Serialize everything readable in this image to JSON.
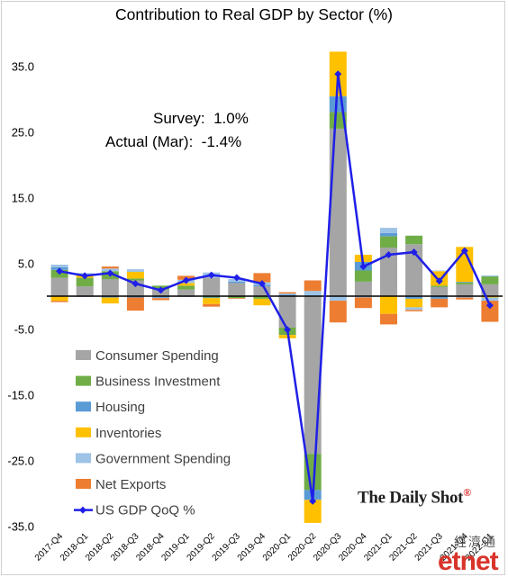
{
  "chart_data": {
    "type": "bar",
    "title": "Contribution to Real GDP by Sector (%)",
    "stacked": true,
    "categories": [
      "2017-Q4",
      "2018-Q1",
      "2018-Q2",
      "2018-Q3",
      "2018-Q4",
      "2019-Q1",
      "2019-Q2",
      "2019-Q3",
      "2019-Q4",
      "2020-Q1",
      "2020-Q2",
      "2020-Q3",
      "2020-Q4",
      "2021-Q1",
      "2021-Q2",
      "2021-Q3",
      "2021-Q4",
      "2022-Q1"
    ],
    "ylim": [
      -35,
      40
    ],
    "yticks": [
      "35.0",
      "25.0",
      "15.0",
      "5.0",
      "-5.0",
      "-15.0",
      "-25.0",
      "-35.0"
    ],
    "ytick_values": [
      35,
      25,
      15,
      5,
      -5,
      -15,
      -25,
      -35
    ],
    "series": [
      {
        "name": "Consumer Spending",
        "color": "#a5a5a5",
        "values": [
          2.8,
          1.5,
          2.6,
          2.4,
          1.0,
          1.0,
          2.8,
          2.0,
          1.5,
          -4.8,
          -24.0,
          25.5,
          2.2,
          7.4,
          7.9,
          1.4,
          1.8,
          1.8
        ]
      },
      {
        "name": "Business Investment",
        "color": "#70ad47",
        "values": [
          1.2,
          1.3,
          1.2,
          0.3,
          0.6,
          0.6,
          -0.2,
          -0.3,
          -0.4,
          -1.1,
          -5.5,
          2.5,
          1.7,
          1.7,
          1.3,
          0.2,
          0.3,
          1.2
        ]
      },
      {
        "name": "Housing",
        "color": "#5b9bd5",
        "values": [
          0.4,
          -0.1,
          -0.2,
          -0.2,
          -0.2,
          -0.1,
          -0.1,
          0.2,
          0.2,
          0.2,
          -1.5,
          2.4,
          1.3,
          0.5,
          -0.4,
          -0.4,
          0.1,
          0.1
        ]
      },
      {
        "name": "Inventories",
        "color": "#ffc000",
        "values": [
          -0.7,
          0.4,
          -0.9,
          1.0,
          0.0,
          0.4,
          -0.9,
          0.0,
          -1.0,
          -0.5,
          -3.5,
          6.8,
          1.1,
          -2.7,
          -1.3,
          2.2,
          5.3,
          -0.2
        ]
      },
      {
        "name": "Government Spending",
        "color": "#9dc3e6",
        "values": [
          0.4,
          0.3,
          0.4,
          0.4,
          -0.1,
          0.5,
          0.8,
          0.4,
          0.4,
          0.2,
          0.8,
          -0.7,
          -0.2,
          0.8,
          -0.4,
          0.1,
          -0.2,
          -0.5
        ]
      },
      {
        "name": "Net Exports",
        "color": "#ed7d31",
        "values": [
          -0.2,
          0.0,
          0.3,
          -2.0,
          -0.3,
          0.6,
          -0.4,
          -0.1,
          1.4,
          0.2,
          1.6,
          -3.3,
          -1.6,
          -1.6,
          -0.2,
          -1.3,
          -0.3,
          -3.2
        ]
      }
    ],
    "line": {
      "name": "US GDP QoQ %",
      "color": "#1f1fe8",
      "values": [
        3.8,
        3.1,
        3.5,
        1.9,
        0.9,
        2.4,
        3.2,
        2.8,
        1.9,
        -5.1,
        -31.2,
        33.8,
        4.5,
        6.3,
        6.7,
        2.3,
        6.9,
        -1.4
      ]
    },
    "legend_position": "bottom-left",
    "grid": false
  },
  "annotation": {
    "survey_line": "Survey:  1.0%",
    "actual_line": "Actual (Mar):  -1.4%"
  },
  "brand": {
    "name": "The Daily Shot",
    "mark": "®"
  },
  "watermark": {
    "chinese": "經濟通",
    "logo": "etnet"
  }
}
